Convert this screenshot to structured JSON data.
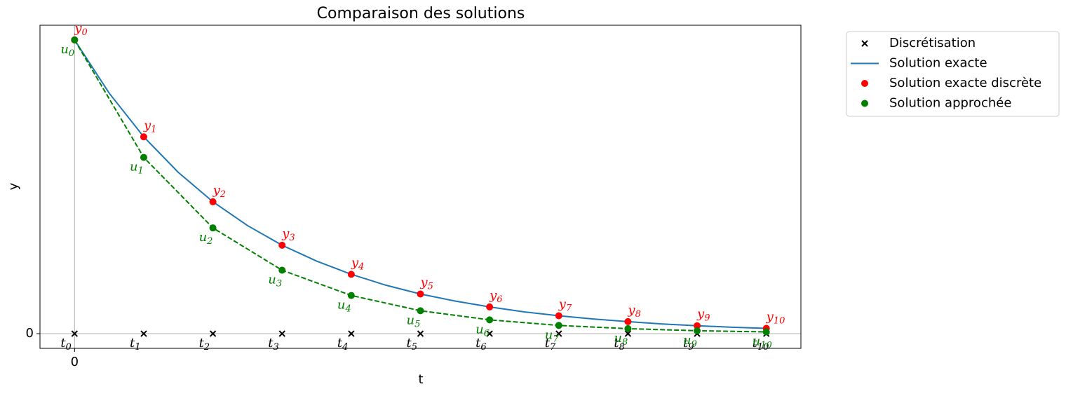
{
  "chart_data": {
    "type": "line",
    "title": "Comparaison des solutions",
    "xlabel": "t",
    "ylabel": "y",
    "xlim": [
      -0.5,
      10.5
    ],
    "ylim": [
      -0.05,
      1.05
    ],
    "xticks": [
      0
    ],
    "yticks": [
      0
    ],
    "zero_lines": true,
    "legend": "outside upper right",
    "series": [
      {
        "name": "Discrétisation",
        "color": "#000000",
        "marker": "x",
        "linestyle": "none",
        "x": [
          0,
          1,
          2,
          3,
          4,
          5,
          6,
          7,
          8,
          9,
          10
        ],
        "values": [
          0,
          0,
          0,
          0,
          0,
          0,
          0,
          0,
          0,
          0,
          0
        ],
        "label_symbol": "t",
        "label_subscripts": [
          "0",
          "1",
          "2",
          "3",
          "4",
          "5",
          "6",
          "7",
          "8",
          "9",
          "10"
        ]
      },
      {
        "name": "Solution exacte",
        "color": "#1f77b4",
        "marker": "none",
        "linestyle": "solid",
        "x": [
          0,
          0.5,
          1,
          1.5,
          2,
          2.5,
          3,
          3.5,
          4,
          4.5,
          5,
          5.5,
          6,
          6.5,
          7,
          7.5,
          8,
          8.5,
          9,
          9.5,
          10
        ],
        "values": [
          1,
          0.819,
          0.67,
          0.549,
          0.449,
          0.368,
          0.301,
          0.247,
          0.202,
          0.165,
          0.135,
          0.111,
          0.091,
          0.074,
          0.061,
          0.05,
          0.041,
          0.033,
          0.027,
          0.022,
          0.018
        ]
      },
      {
        "name": "Solution exacte discrète",
        "color": "#ff0000",
        "marker": "o",
        "linestyle": "none",
        "x": [
          0,
          1,
          2,
          3,
          4,
          5,
          6,
          7,
          8,
          9,
          10
        ],
        "values": [
          1,
          0.67,
          0.449,
          0.301,
          0.202,
          0.135,
          0.091,
          0.061,
          0.041,
          0.027,
          0.018
        ],
        "label_symbol": "y",
        "label_subscripts": [
          "0",
          "1",
          "2",
          "3",
          "4",
          "5",
          "6",
          "7",
          "8",
          "9",
          "10"
        ]
      },
      {
        "name": "Solution approchée",
        "color": "#008000",
        "marker": "o",
        "linestyle": "dashed",
        "x": [
          0,
          1,
          2,
          3,
          4,
          5,
          6,
          7,
          8,
          9,
          10
        ],
        "values": [
          1,
          0.6,
          0.36,
          0.216,
          0.13,
          0.078,
          0.047,
          0.028,
          0.017,
          0.01,
          0.006
        ],
        "label_symbol": "u",
        "label_subscripts": [
          "0",
          "1",
          "2",
          "3",
          "4",
          "5",
          "6",
          "7",
          "8",
          "9",
          "10"
        ]
      }
    ]
  }
}
